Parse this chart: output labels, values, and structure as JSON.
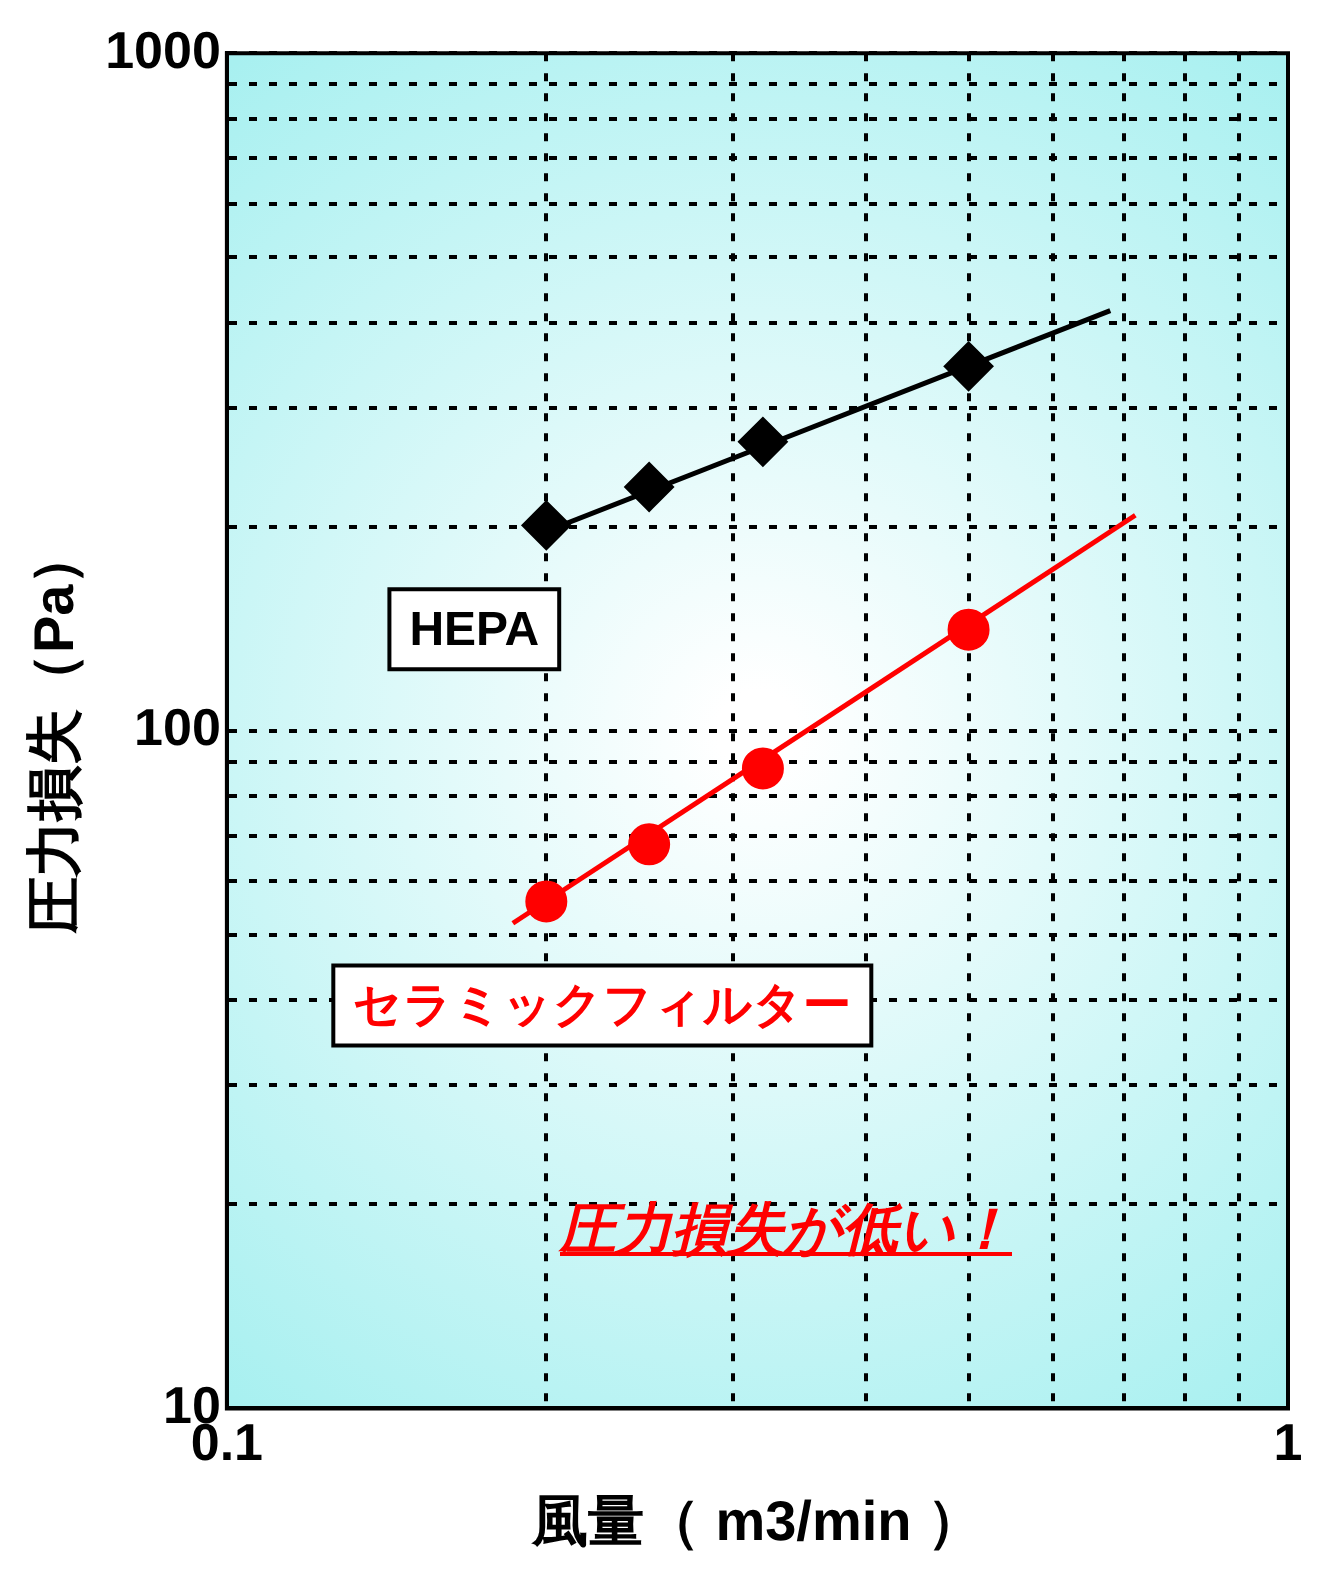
{
  "chart_data": {
    "type": "scatter",
    "xlabel": "風量（ m3/min ）",
    "ylabel": "圧力損失（Pa）",
    "annotations": [
      "圧力損失が低い！"
    ],
    "log": "xy",
    "grid": true,
    "legend": false,
    "xlim": [
      0.1,
      1
    ],
    "ylim": [
      10,
      1000
    ],
    "xticks": [
      0.1,
      {
        "value": 0.2,
        "label": null
      },
      {
        "value": 0.3,
        "label": null
      },
      {
        "value": 0.4,
        "label": null
      },
      {
        "value": 0.5,
        "label": null
      },
      {
        "value": 0.6,
        "label": null
      },
      {
        "value": 0.7,
        "label": null
      },
      {
        "value": 0.8,
        "label": null
      },
      {
        "value": 0.9,
        "label": null
      },
      1
    ],
    "yticks": [
      10,
      {
        "value": 20,
        "label": null
      },
      {
        "value": 30,
        "label": null
      },
      {
        "value": 40,
        "label": null
      },
      {
        "value": 50,
        "label": null
      },
      {
        "value": 60,
        "label": null
      },
      {
        "value": 70,
        "label": null
      },
      {
        "value": 80,
        "label": null
      },
      {
        "value": 90,
        "label": null
      },
      100,
      {
        "value": 200,
        "label": null
      },
      {
        "value": 300,
        "label": null
      },
      {
        "value": 400,
        "label": null
      },
      {
        "value": 500,
        "label": null
      },
      {
        "value": 600,
        "label": null
      },
      {
        "value": 700,
        "label": null
      },
      {
        "value": 800,
        "label": null
      },
      {
        "value": 900,
        "label": null
      },
      1000
    ],
    "series": [
      {
        "name": "HEPA",
        "marker": "diamond",
        "color": "#000000",
        "x": [
          0.2,
          0.25,
          0.32,
          0.5
        ],
        "values": [
          201,
          229,
          267,
          345
        ]
      },
      {
        "name": "セラミックフィルター",
        "marker": "circle",
        "color": "#ff0000",
        "x": [
          0.2,
          0.25,
          0.32,
          0.5
        ],
        "values": [
          56,
          68,
          88,
          141
        ]
      },
      {
        "type": "line",
        "marker": "none",
        "color": "#000000",
        "x": [
          0.2,
          0.68
        ],
        "values": [
          197,
          417
        ]
      },
      {
        "type": "line",
        "marker": "none",
        "color": "#ff0000",
        "x": [
          0.186,
          0.718
        ],
        "values": [
          52,
          208
        ]
      }
    ]
  }
}
